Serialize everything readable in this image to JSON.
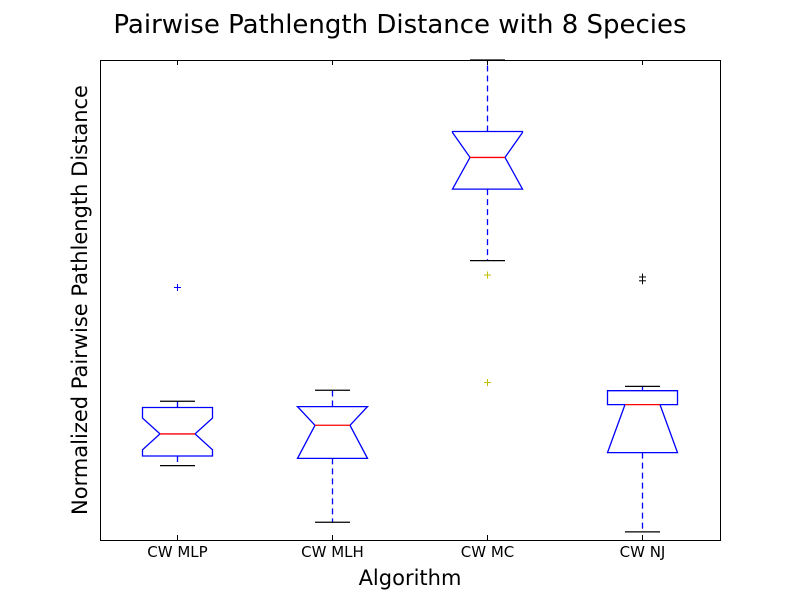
{
  "chart_data": {
    "type": "boxplot",
    "title": "Pairwise Pathlength Distance with 8 Species",
    "xlabel": "Algorithm",
    "ylabel": "Normalized Pairwise Pathlength Distance",
    "yticks_shown": false,
    "ylim": [
      0,
      1
    ],
    "notched": true,
    "categories": [
      "CW MLP",
      "CW MLH",
      "CW MC",
      "CW NJ"
    ],
    "boxes": [
      {
        "name": "CW MLP",
        "whisker_low": 0.155,
        "q1": 0.175,
        "notch_low": 0.188,
        "median": 0.221,
        "notch_high": 0.254,
        "q3": 0.276,
        "whisker_high": 0.289,
        "outliers": [
          {
            "value": 0.526,
            "color": "#0000ff"
          }
        ]
      },
      {
        "name": "CW MLH",
        "whisker_low": 0.037,
        "q1": 0.17,
        "notch_low": 0.17,
        "median": 0.239,
        "notch_high": 0.278,
        "q3": 0.278,
        "whisker_high": 0.312,
        "outliers": []
      },
      {
        "name": "CW MC",
        "whisker_low": 0.582,
        "q1": 0.731,
        "notch_low": 0.731,
        "median": 0.797,
        "notch_high": 0.849,
        "q3": 0.851,
        "whisker_high": 1.0,
        "outliers": [
          {
            "value": 0.552,
            "color": "#bfbf00"
          },
          {
            "value": 0.328,
            "color": "#bfbf00"
          }
        ]
      },
      {
        "name": "CW NJ",
        "whisker_low": 0.017,
        "q1": 0.182,
        "notch_low": 0.182,
        "median": 0.282,
        "notch_high": 0.282,
        "q3": 0.311,
        "whisker_high": 0.32,
        "outliers": [
          {
            "value": 0.548,
            "color": "#000000"
          },
          {
            "value": 0.54,
            "color": "#000000"
          }
        ]
      }
    ],
    "colors": {
      "box": "#0000ff",
      "median": "#ff0000",
      "cap": "#000000",
      "whisker": "#0000ff"
    }
  }
}
